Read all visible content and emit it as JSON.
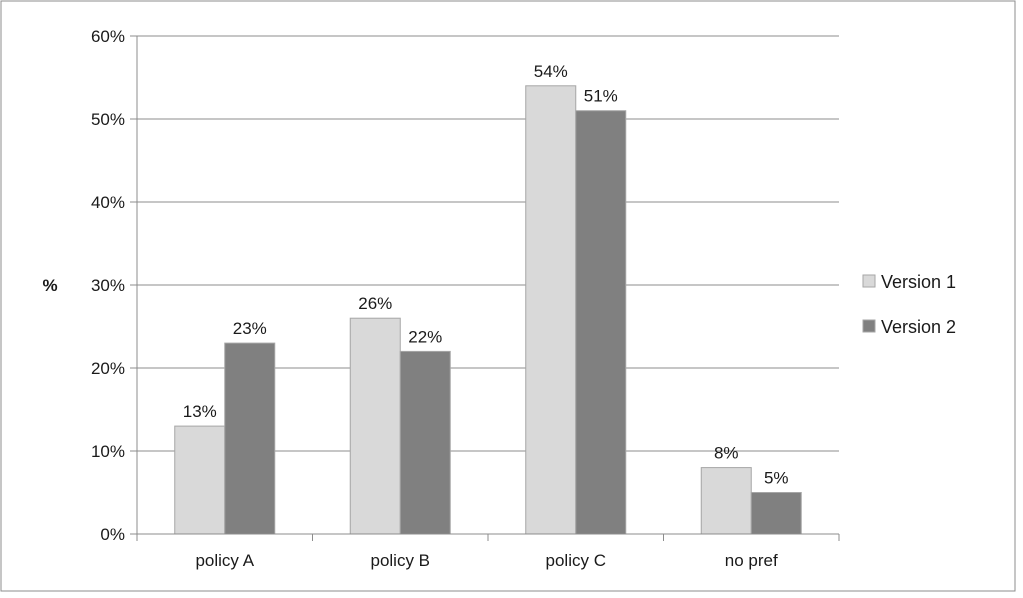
{
  "chart_data": {
    "type": "bar",
    "categories": [
      "policy A",
      "policy B",
      "policy C",
      "no pref"
    ],
    "series": [
      {
        "name": "Version 1",
        "values": [
          13,
          26,
          54,
          8
        ],
        "labels": [
          "13%",
          "26%",
          "54%",
          "8%"
        ],
        "color": "#d9d9d9"
      },
      {
        "name": "Version 2",
        "values": [
          23,
          22,
          51,
          5
        ],
        "labels": [
          "23%",
          "22%",
          "51%",
          "5%"
        ],
        "color": "#808080"
      }
    ],
    "ylabel": "%",
    "ylim": [
      0,
      60
    ],
    "yticks": [
      0,
      10,
      20,
      30,
      40,
      50,
      60
    ],
    "ytick_labels": [
      "0%",
      "10%",
      "20%",
      "30%",
      "40%",
      "50%",
      "60%"
    ],
    "grid": true,
    "legend": "right"
  }
}
